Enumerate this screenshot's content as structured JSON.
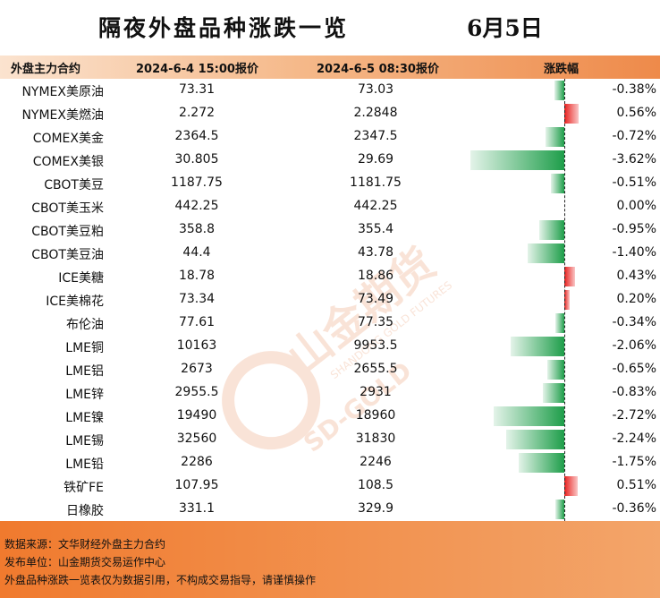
{
  "title": "隔夜外盘品种涨跌一览",
  "date": "6月5日",
  "headers": {
    "name": "外盘主力合约",
    "price_prev": "2024-6-4 15:00报价",
    "price_curr": "2024-6-5 08:30报价",
    "change": "涨跌幅"
  },
  "colors": {
    "up": "#e8201e",
    "down": "#1e9e4a",
    "header_end": "#ee8a4a",
    "footer": "#f07a2e"
  },
  "chart_data": {
    "type": "bar",
    "orientation": "horizontal",
    "categories": [
      "NYMEX美原油",
      "NYMEX美燃油",
      "COMEX美金",
      "COMEX美银",
      "CBOT美豆",
      "CBOT美玉米",
      "CBOT美豆粕",
      "CBOT美豆油",
      "ICE美糖",
      "ICE美棉花",
      "布伦油",
      "LME铜",
      "LME铝",
      "LME锌",
      "LME镍",
      "LME锡",
      "LME铅",
      "铁矿FE",
      "日橡胶"
    ],
    "price_prev": [
      "73.31",
      "2.272",
      "2364.5",
      "30.805",
      "1187.75",
      "442.25",
      "358.8",
      "44.4",
      "18.78",
      "73.34",
      "77.61",
      "10163",
      "2673",
      "2955.5",
      "19490",
      "32560",
      "2286",
      "107.95",
      "331.1"
    ],
    "price_curr": [
      "73.03",
      "2.2848",
      "2347.5",
      "29.69",
      "1181.75",
      "442.25",
      "355.4",
      "43.78",
      "18.86",
      "73.49",
      "77.35",
      "9953.5",
      "2655.5",
      "2931",
      "18960",
      "31830",
      "2246",
      "108.5",
      "329.9"
    ],
    "change_labels": [
      "-0.38%",
      "0.56%",
      "-0.72%",
      "-3.62%",
      "-0.51%",
      "0.00%",
      "-0.95%",
      "-1.40%",
      "0.43%",
      "0.20%",
      "-0.34%",
      "-2.06%",
      "-0.65%",
      "-0.83%",
      "-2.72%",
      "-2.24%",
      "-1.75%",
      "0.51%",
      "-0.36%"
    ],
    "values": [
      -0.38,
      0.56,
      -0.72,
      -3.62,
      -0.51,
      0.0,
      -0.95,
      -1.4,
      0.43,
      0.2,
      -0.34,
      -2.06,
      -0.65,
      -0.83,
      -2.72,
      -2.24,
      -1.75,
      0.51,
      -0.36
    ]
  },
  "footer": {
    "source": "数据来源：文华财经外盘主力合约",
    "publisher": "发布单位：山金期货交易运作中心",
    "disclaimer": "外盘品种涨跌一览表仅为数据引用，不构成交易指导，请谨慎操作"
  },
  "watermark": {
    "brand": "山金期货",
    "en": "SD-GOLD",
    "sub": "SHANDONG GOLD FUTURES"
  }
}
